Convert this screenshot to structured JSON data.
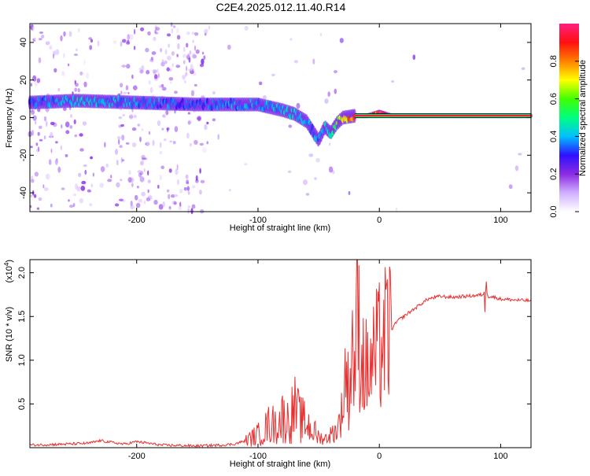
{
  "title": "C2E4.2025.012.11.40.R14",
  "chart_data": [
    {
      "type": "heatmap",
      "name": "spectrogram",
      "xlabel": "Height of straight line (km)",
      "ylabel": "Frequency (Hz)",
      "xlim": [
        -288,
        125
      ],
      "ylim": [
        -50,
        50
      ],
      "xticks": [
        -200,
        -100,
        0,
        100
      ],
      "yticks": [
        -40,
        -20,
        0,
        20,
        40
      ],
      "colorbar": {
        "label": "Normalized spectral amplitude",
        "range": [
          0.0,
          1.0
        ],
        "ticks": [
          0.0,
          0.2,
          0.4,
          0.6,
          0.8
        ],
        "tick_labels": [
          "0.0",
          "0.2",
          "0.4",
          "0.6",
          "0.8"
        ],
        "colormap": [
          "#ffffff",
          "#d0b0ff",
          "#8a2be2",
          "#3010ff",
          "#00c0ff",
          "#00ff80",
          "#40ff00",
          "#ffff00",
          "#ff8000",
          "#ff1010",
          "#ff2080"
        ]
      },
      "ridge": {
        "x": [
          -288,
          -250,
          -200,
          -150,
          -120,
          -100,
          -80,
          -70,
          -60,
          -50,
          -45,
          -40,
          -35,
          -30,
          -20,
          -10,
          -5,
          0,
          5,
          10,
          20,
          50,
          85,
          125
        ],
        "y": [
          8,
          9,
          8,
          7,
          7,
          7,
          4,
          2,
          -2,
          -12,
          -5,
          -8,
          -3,
          0,
          1,
          1,
          2,
          3,
          2,
          1,
          1,
          1,
          1,
          1
        ],
        "amplitude": [
          0.35,
          0.45,
          0.4,
          0.35,
          0.4,
          0.4,
          0.45,
          0.45,
          0.4,
          0.4,
          0.45,
          0.5,
          0.6,
          0.8,
          0.9,
          0.9,
          0.95,
          1.0,
          0.95,
          0.95,
          0.95,
          0.95,
          0.9,
          0.9
        ]
      }
    },
    {
      "type": "line",
      "name": "snr",
      "xlabel": "Height of straight line (km)",
      "ylabel": "SNR (10 * v/v)",
      "scale_label": "(x10",
      "scale_exponent": "4",
      "scale_suffix": ")",
      "xlim": [
        -288,
        125
      ],
      "ylim": [
        0,
        2.15
      ],
      "xticks": [
        -200,
        -100,
        0,
        100
      ],
      "yticks": [
        0.5,
        1.0,
        1.5,
        2.0
      ],
      "ytick_labels": [
        "0.5",
        "1.0",
        "1.5",
        "2.0"
      ],
      "line_color": "#e83030",
      "series": [
        {
          "x": [
            -288,
            -260,
            -240,
            -230,
            -210,
            -200,
            -180,
            -150,
            -130,
            -120,
            -110,
            -100,
            -95,
            -90,
            -85,
            -80,
            -75,
            -70,
            -65,
            -60,
            -55,
            -50,
            -45,
            -40,
            -35,
            -30,
            -28,
            -25,
            -22,
            -20,
            -18,
            -15,
            -12,
            -10,
            -8,
            -5,
            0,
            5,
            10,
            15,
            20,
            30,
            40,
            50,
            60,
            70,
            80,
            85,
            88,
            90,
            95,
            100,
            110,
            125
          ],
          "y": [
            0.03,
            0.04,
            0.05,
            0.08,
            0.04,
            0.07,
            0.03,
            0.02,
            0.03,
            0.04,
            0.08,
            0.15,
            0.2,
            0.28,
            0.25,
            0.35,
            0.3,
            0.45,
            0.32,
            0.28,
            0.2,
            0.12,
            0.1,
            0.15,
            0.2,
            0.45,
            0.9,
            0.6,
            1.25,
            0.8,
            1.55,
            1.05,
            0.95,
            0.85,
            0.9,
            1.0,
            1.15,
            1.25,
            1.35,
            1.45,
            1.5,
            1.6,
            1.7,
            1.73,
            1.72,
            1.73,
            1.74,
            1.75,
            1.8,
            1.73,
            1.72,
            1.7,
            1.69,
            1.68
          ]
        }
      ]
    }
  ]
}
